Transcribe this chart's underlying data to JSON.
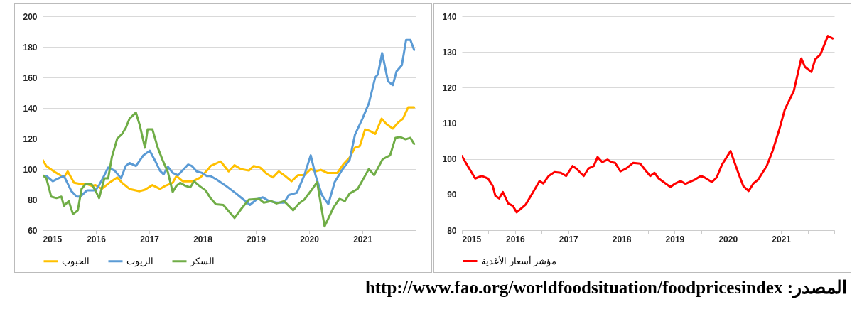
{
  "chart_data": [
    {
      "type": "line",
      "xlim": [
        2015,
        2022
      ],
      "xticks": [
        2015,
        2016,
        2017,
        2018,
        2019,
        2020,
        2021
      ],
      "ylim": [
        60,
        200
      ],
      "yticks": [
        60,
        80,
        100,
        120,
        140,
        160,
        180,
        200
      ],
      "grid": "y",
      "legend": "bottom",
      "series": [
        {
          "name": "الحبوب",
          "color": "#ffc000",
          "x": [
            2015,
            2015.07,
            2015.21,
            2015.4,
            2015.47,
            2015.59,
            2015.68,
            2015.8,
            2015.92,
            2015.99,
            2016.11,
            2016.25,
            2016.4,
            2016.49,
            2016.63,
            2016.82,
            2016.92,
            2017.06,
            2017.2,
            2017.3,
            2017.44,
            2017.51,
            2017.63,
            2017.82,
            2017.96,
            2018.11,
            2018.15,
            2018.34,
            2018.49,
            2018.6,
            2018.72,
            2018.87,
            2018.96,
            2019.08,
            2019.2,
            2019.32,
            2019.43,
            2019.55,
            2019.67,
            2019.79,
            2019.91,
            2020.03,
            2020.12,
            2020.22,
            2020.34,
            2020.53,
            2020.65,
            2020.76,
            2020.86,
            2020.95,
            2021.05,
            2021.14,
            2021.24,
            2021.36,
            2021.45,
            2021.57,
            2021.67,
            2021.76,
            2021.86,
            2021.97
          ],
          "values": [
            106,
            102,
            98.5,
            94.5,
            98.5,
            91,
            90.5,
            90.5,
            89,
            89.5,
            87,
            91,
            94.5,
            91,
            87,
            85.5,
            86.5,
            89.5,
            87,
            89,
            91,
            95.5,
            92,
            92,
            94.5,
            100,
            102,
            105,
            98.5,
            102.5,
            100,
            99,
            102,
            101,
            97,
            94.5,
            98.5,
            95.5,
            92,
            96,
            96,
            100,
            98.5,
            99.5,
            97.5,
            97.5,
            103.5,
            107.5,
            114,
            115,
            126,
            125,
            123,
            133,
            129.5,
            126.5,
            130.5,
            133,
            140.5,
            140.5
          ]
        },
        {
          "name": "الزيوت",
          "color": "#5b9bd5",
          "x": [
            2015,
            2015.07,
            2015.19,
            2015.3,
            2015.4,
            2015.54,
            2015.64,
            2015.71,
            2015.83,
            2015.99,
            2016.06,
            2016.13,
            2016.23,
            2016.35,
            2016.47,
            2016.56,
            2016.63,
            2016.75,
            2016.82,
            2016.89,
            2017.01,
            2017.11,
            2017.2,
            2017.27,
            2017.35,
            2017.44,
            2017.54,
            2017.65,
            2017.73,
            2017.8,
            2017.89,
            2017.99,
            2018.08,
            2018.15,
            2018.27,
            2018.44,
            2018.63,
            2018.77,
            2018.89,
            2019.01,
            2019.13,
            2019.25,
            2019.39,
            2019.53,
            2019.62,
            2019.77,
            2019.91,
            2020.03,
            2020.12,
            2020.24,
            2020.36,
            2020.48,
            2020.62,
            2020.76,
            2020.86,
            2021,
            2021.12,
            2021.24,
            2021.29,
            2021.37,
            2021.48,
            2021.57,
            2021.64,
            2021.74,
            2021.82,
            2021.9,
            2021.97
          ],
          "values": [
            95.5,
            95.5,
            92,
            94,
            95.5,
            85.5,
            82,
            82,
            86,
            86,
            89.5,
            94,
            101,
            99,
            94,
            102,
            104,
            102,
            105.5,
            109,
            112,
            105.5,
            99,
            96.5,
            101.5,
            97.5,
            96,
            100,
            103,
            102,
            98.5,
            97.5,
            95.5,
            95.5,
            93,
            89,
            84,
            80,
            76.5,
            80,
            81.5,
            79,
            78,
            78,
            83,
            84.5,
            96,
            109,
            96,
            83,
            77,
            91.5,
            99.5,
            106,
            122.5,
            133,
            143,
            160,
            162,
            176,
            157.5,
            155,
            164,
            168,
            184.5,
            184.5,
            178
          ]
        },
        {
          "name": "السكر",
          "color": "#70ad47",
          "x": [
            2015,
            2015.07,
            2015.16,
            2015.26,
            2015.35,
            2015.4,
            2015.49,
            2015.57,
            2015.66,
            2015.73,
            2015.8,
            2015.92,
            2015.99,
            2016.06,
            2016.16,
            2016.23,
            2016.3,
            2016.4,
            2016.49,
            2016.56,
            2016.63,
            2016.75,
            2016.82,
            2016.92,
            2016.97,
            2017.06,
            2017.16,
            2017.25,
            2017.35,
            2017.44,
            2017.51,
            2017.58,
            2017.68,
            2017.77,
            2017.84,
            2017.94,
            2018.06,
            2018.15,
            2018.25,
            2018.39,
            2018.6,
            2018.75,
            2018.87,
            2019.06,
            2019.15,
            2019.29,
            2019.39,
            2019.53,
            2019.7,
            2019.81,
            2019.91,
            2020.05,
            2020.15,
            2020.29,
            2020.46,
            2020.57,
            2020.67,
            2020.76,
            2020.91,
            2021,
            2021.12,
            2021.22,
            2021.38,
            2021.52,
            2021.62,
            2021.71,
            2021.81,
            2021.9,
            2021.97
          ],
          "values": [
            96,
            94,
            82,
            81,
            82,
            76,
            79,
            70.5,
            73,
            87,
            90,
            90,
            86,
            81,
            94,
            94,
            108,
            120,
            123,
            127,
            133,
            137,
            129,
            114,
            126,
            126,
            114,
            106,
            98,
            85,
            89,
            91,
            89,
            88,
            92,
            89,
            86,
            81,
            77,
            76.5,
            68,
            75,
            80,
            80.5,
            78,
            79,
            77.5,
            79,
            73,
            77.5,
            80,
            86.5,
            91.5,
            62.5,
            75,
            80.5,
            79,
            84,
            87,
            92.5,
            100,
            96,
            106.5,
            109,
            120.5,
            121,
            119.5,
            120.5,
            116.5
          ]
        }
      ]
    },
    {
      "type": "line",
      "xlim": [
        2015,
        2022
      ],
      "xticks": [
        2015,
        {
          "value": 2015.5,
          "label": null
        },
        2016,
        {
          "value": 2016.5,
          "label": null
        },
        2017,
        {
          "value": 2017.5,
          "label": null
        },
        2018,
        {
          "value": 2018.5,
          "label": null
        },
        2019,
        {
          "value": 2019.5,
          "label": null
        },
        2020,
        {
          "value": 2020.5,
          "label": null
        },
        2021,
        {
          "value": 2021.5,
          "label": null
        },
        {
          "value": 2022,
          "label": null
        }
      ],
      "ylim": [
        80,
        140
      ],
      "yticks": [
        80,
        90,
        100,
        110,
        120,
        130,
        140
      ],
      "grid": "y",
      "legend": "bottom",
      "annotations": [
        "المصدر: http://www.fao.org/worldfoodsituation/foodpricesindex"
      ],
      "series": [
        {
          "name": "مؤشر أسعار الأغذية",
          "color": "#ff0000",
          "x": [
            2015,
            2015.11,
            2015.25,
            2015.37,
            2015.49,
            2015.58,
            2015.63,
            2015.7,
            2015.77,
            2015.87,
            2015.96,
            2016.03,
            2016.2,
            2016.34,
            2016.46,
            2016.53,
            2016.63,
            2016.74,
            2016.86,
            2016.96,
            2017.08,
            2017.15,
            2017.29,
            2017.38,
            2017.48,
            2017.55,
            2017.64,
            2017.74,
            2017.81,
            2017.88,
            2017.98,
            2018.09,
            2018.22,
            2018.35,
            2018.44,
            2018.54,
            2018.62,
            2018.7,
            2018.92,
            2019.01,
            2019.11,
            2019.2,
            2019.38,
            2019.49,
            2019.56,
            2019.7,
            2019.79,
            2019.89,
            2020.05,
            2020.2,
            2020.29,
            2020.39,
            2020.48,
            2020.57,
            2020.73,
            2020.84,
            2020.96,
            2021.07,
            2021.24,
            2021.38,
            2021.45,
            2021.57,
            2021.64,
            2021.74,
            2021.88,
            2021.97
          ],
          "values": [
            100.8,
            98,
            94.5,
            95.2,
            94.5,
            92.4,
            89.6,
            88.9,
            90.7,
            87.5,
            86.8,
            85,
            87.2,
            90.7,
            93.8,
            93.1,
            95.2,
            96.3,
            96.1,
            95.2,
            98,
            97.3,
            95.2,
            97.3,
            98,
            100.5,
            99.1,
            99.8,
            99.1,
            98.9,
            96.5,
            97.3,
            98.9,
            98.7,
            97,
            95.2,
            96.1,
            94.5,
            92.1,
            93.1,
            93.8,
            93,
            94.2,
            95.2,
            94.8,
            93.5,
            94.8,
            98.4,
            102.2,
            95.9,
            92.4,
            91,
            93.1,
            94.2,
            98,
            102.2,
            107.9,
            113.8,
            119.1,
            128.2,
            125.8,
            124.4,
            127.9,
            129.3,
            134.5,
            133.8
          ]
        }
      ]
    }
  ]
}
